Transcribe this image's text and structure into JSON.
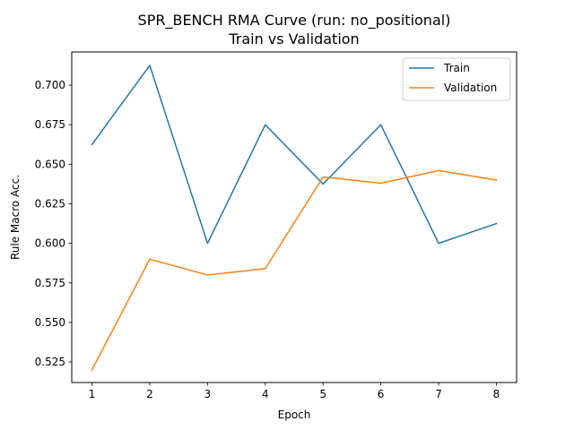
{
  "chart_data": {
    "type": "line",
    "title_line1": "SPR_BENCH RMA Curve (run: no_positional)",
    "title_line2": "Train vs Validation",
    "xlabel": "Epoch",
    "ylabel": "Rule Macro Acc.",
    "x": [
      1,
      2,
      3,
      4,
      5,
      6,
      7,
      8
    ],
    "xlim": [
      0.65,
      8.35
    ],
    "ylim": [
      0.512,
      0.721
    ],
    "xticks": [
      1,
      2,
      3,
      4,
      5,
      6,
      7,
      8
    ],
    "yticks": [
      0.525,
      0.55,
      0.575,
      0.6,
      0.625,
      0.65,
      0.675,
      0.7
    ],
    "ytick_labels": [
      "0.525",
      "0.550",
      "0.575",
      "0.600",
      "0.625",
      "0.650",
      "0.675",
      "0.700"
    ],
    "grid": false,
    "legend_position": "top-right",
    "series": [
      {
        "name": "Train",
        "color": "#1f77b4",
        "values": [
          0.6625,
          0.7125,
          0.6,
          0.675,
          0.6375,
          0.675,
          0.6,
          0.6125
        ]
      },
      {
        "name": "Validation",
        "color": "#ff7f0e",
        "values": [
          0.52,
          0.59,
          0.58,
          0.584,
          0.642,
          0.638,
          0.646,
          0.64
        ]
      }
    ]
  }
}
